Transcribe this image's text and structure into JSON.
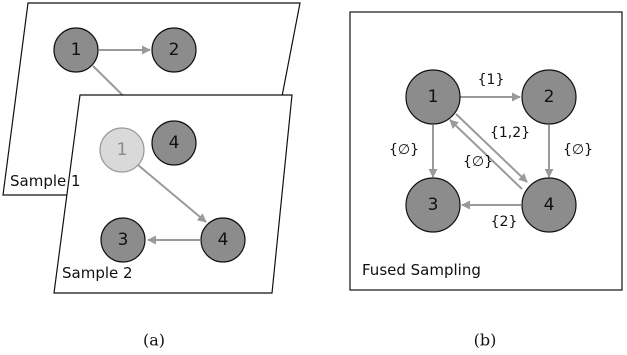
{
  "panel_a": {
    "caption": "(a)",
    "sample1": {
      "label": "Sample 1",
      "nodes": {
        "n1": "1",
        "n2": "2",
        "n4": "4"
      }
    },
    "sample2": {
      "label": "Sample 2",
      "nodes": {
        "n1": "1",
        "n3": "3",
        "n4": "4"
      }
    }
  },
  "panel_b": {
    "caption": "(b)",
    "title": "Fused Sampling",
    "nodes": {
      "n1": "1",
      "n2": "2",
      "n3": "3",
      "n4": "4"
    },
    "edge_labels": {
      "e12": "{1}",
      "e13": "{∅}",
      "e14": "{1,2}",
      "e41": "{∅}",
      "e24": "{∅}",
      "e43": "{2}"
    }
  },
  "colors": {
    "node_fill": "#8c8c8c",
    "node_faded_fill": "#d9d9d9",
    "edge": "#9a9a9a",
    "border": "#111111"
  }
}
